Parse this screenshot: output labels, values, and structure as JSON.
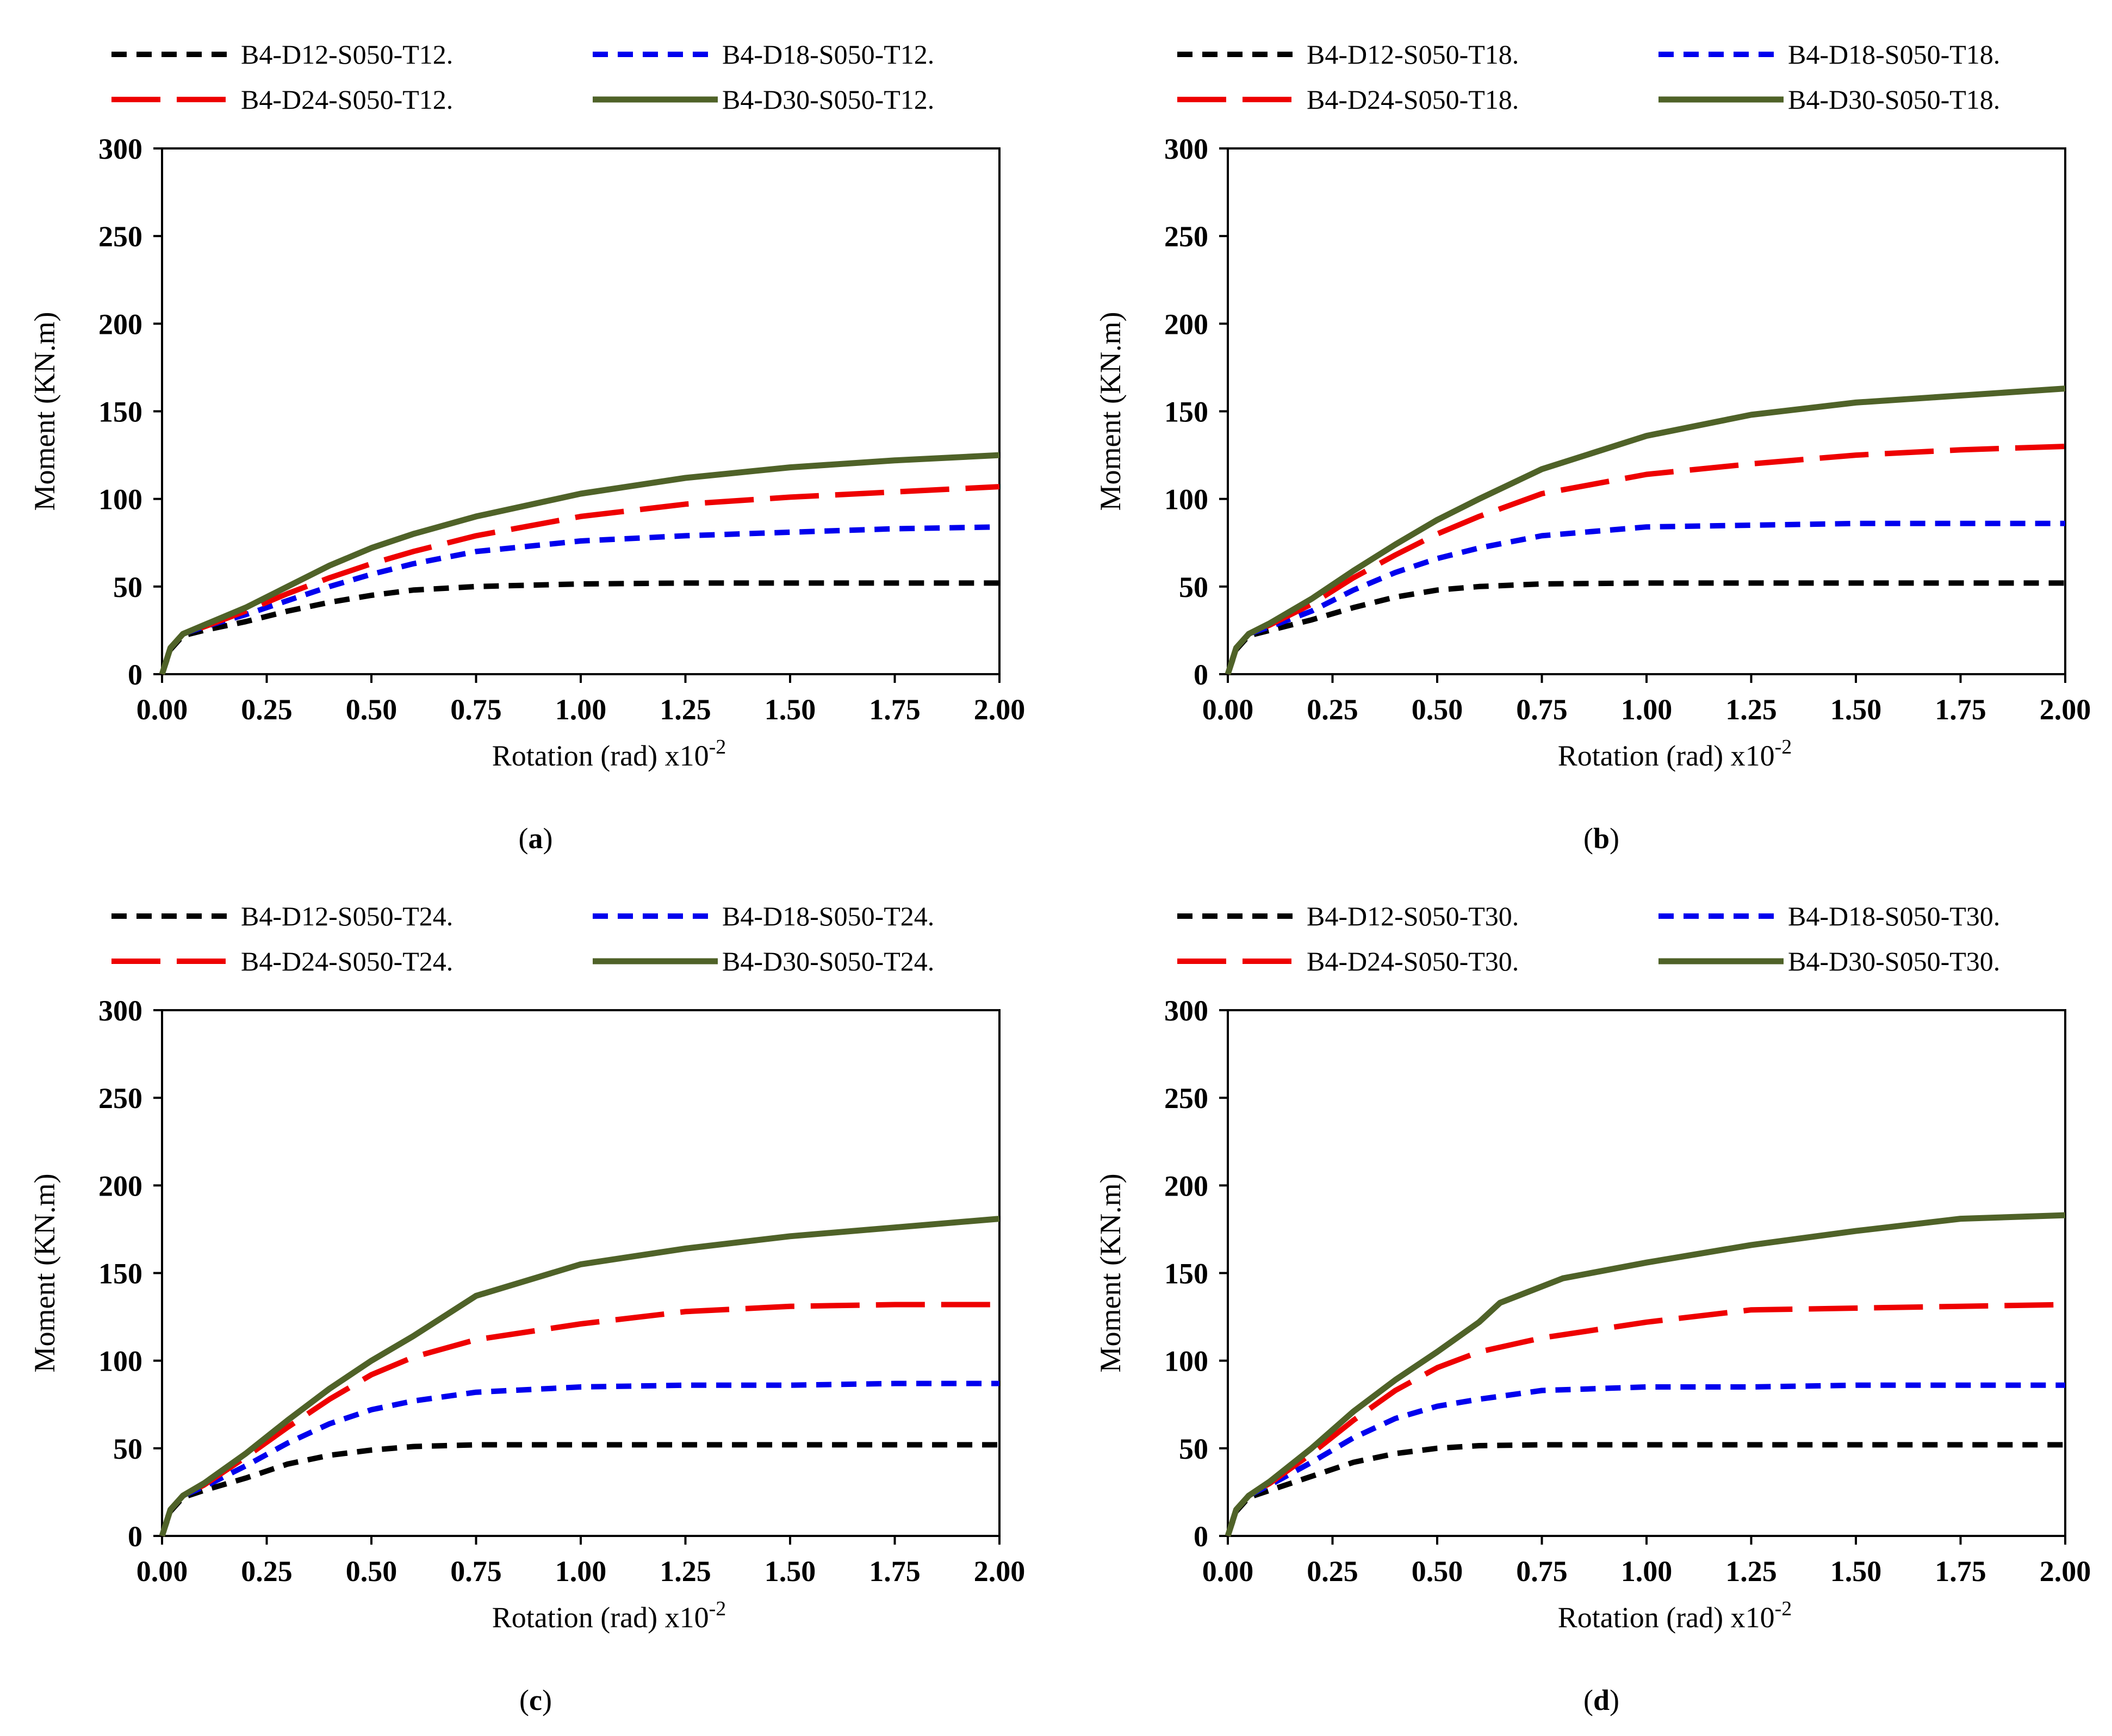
{
  "figure": {
    "panels": [
      {
        "caption_letter": "a",
        "series_labels": [
          "B4-D12-S050-T12.",
          "B4-D18-S050-T12.",
          "B4-D24-S050-T12.",
          "B4-D30-S050-T12."
        ]
      },
      {
        "caption_letter": "b",
        "series_labels": [
          "B4-D12-S050-T18.",
          "B4-D18-S050-T18.",
          "B4-D24-S050-T18.",
          "B4-D30-S050-T18."
        ]
      },
      {
        "caption_letter": "c",
        "series_labels": [
          "B4-D12-S050-T24.",
          "B4-D18-S050-T24.",
          "B4-D24-S050-T24.",
          "B4-D30-S050-T24."
        ]
      },
      {
        "caption_letter": "d",
        "series_labels": [
          "B4-D12-S050-T30.",
          "B4-D18-S050-T30.",
          "B4-D24-S050-T30.",
          "B4-D30-S050-T30."
        ]
      }
    ]
  },
  "chart_data": [
    {
      "type": "line",
      "panel": "a",
      "xlabel": "Rotation (rad)",
      "xscale_label": "x10",
      "xscale_exponent": "-2",
      "ylabel": "Moment (KN.m)",
      "xlim": [
        0,
        2
      ],
      "ylim": [
        0,
        300
      ],
      "xticks": [
        "0.00",
        "0.25",
        "0.50",
        "0.75",
        "1.00",
        "1.25",
        "1.50",
        "1.75",
        "2.00"
      ],
      "yticks": [
        "0",
        "50",
        "100",
        "150",
        "200",
        "250",
        "300"
      ],
      "legend_position": "top",
      "series": [
        {
          "name": "B4-D12-S050-T12.",
          "color": "#000000",
          "style": "dash",
          "x": [
            0,
            0.02,
            0.05,
            0.1,
            0.2,
            0.3,
            0.4,
            0.5,
            0.6,
            0.75,
            1.0,
            1.25,
            1.5,
            1.75,
            2.0
          ],
          "y": [
            0,
            14,
            22,
            25,
            30,
            36,
            41,
            45,
            48,
            50,
            51.5,
            52,
            52,
            52,
            52
          ]
        },
        {
          "name": "B4-D18-S050-T12.",
          "color": "#0000ee",
          "style": "dash",
          "x": [
            0,
            0.02,
            0.05,
            0.1,
            0.2,
            0.3,
            0.4,
            0.5,
            0.6,
            0.75,
            1.0,
            1.25,
            1.5,
            1.75,
            2.0
          ],
          "y": [
            0,
            15,
            23,
            27,
            34,
            42,
            50,
            57,
            63,
            70,
            76,
            79,
            81,
            83,
            84
          ]
        },
        {
          "name": "B4-D24-S050-T12.",
          "color": "#ee0000",
          "style": "longdash",
          "x": [
            0,
            0.02,
            0.05,
            0.1,
            0.2,
            0.3,
            0.4,
            0.5,
            0.6,
            0.75,
            1.0,
            1.25,
            1.5,
            1.75,
            2.0
          ],
          "y": [
            0,
            15,
            23,
            27,
            36,
            46,
            55,
            63,
            70,
            79,
            90,
            97,
            101,
            104,
            107
          ]
        },
        {
          "name": "B4-D30-S050-T12.",
          "color": "#4f6228",
          "style": "solid",
          "x": [
            0,
            0.02,
            0.05,
            0.1,
            0.2,
            0.3,
            0.4,
            0.5,
            0.6,
            0.75,
            1.0,
            1.25,
            1.5,
            1.75,
            2.0
          ],
          "y": [
            0,
            15,
            23,
            28,
            38,
            50,
            62,
            72,
            80,
            90,
            103,
            112,
            118,
            122,
            125
          ]
        }
      ]
    },
    {
      "type": "line",
      "panel": "b",
      "xlabel": "Rotation (rad)",
      "xscale_label": "x10",
      "xscale_exponent": "-2",
      "ylabel": "Moment (KN.m)",
      "xlim": [
        0,
        2
      ],
      "ylim": [
        0,
        300
      ],
      "xticks": [
        "0.00",
        "0.25",
        "0.50",
        "0.75",
        "1.00",
        "1.25",
        "1.50",
        "1.75",
        "2.00"
      ],
      "yticks": [
        "0",
        "50",
        "100",
        "150",
        "200",
        "250",
        "300"
      ],
      "legend_position": "top",
      "series": [
        {
          "name": "B4-D12-S050-T18.",
          "color": "#000000",
          "style": "dash",
          "x": [
            0,
            0.02,
            0.05,
            0.1,
            0.2,
            0.3,
            0.4,
            0.5,
            0.6,
            0.75,
            1.0,
            1.25,
            1.5,
            1.75,
            2.0
          ],
          "y": [
            0,
            14,
            22,
            25,
            31,
            38,
            44,
            48,
            50,
            51.5,
            52,
            52,
            52,
            52,
            52
          ]
        },
        {
          "name": "B4-D18-S050-T18.",
          "color": "#0000ee",
          "style": "dash",
          "x": [
            0,
            0.02,
            0.05,
            0.1,
            0.2,
            0.3,
            0.4,
            0.5,
            0.6,
            0.75,
            1.0,
            1.25,
            1.5,
            1.75,
            2.0
          ],
          "y": [
            0,
            15,
            23,
            27,
            36,
            48,
            58,
            66,
            72,
            79,
            84,
            85,
            86,
            86,
            86
          ]
        },
        {
          "name": "B4-D24-S050-T18.",
          "color": "#ee0000",
          "style": "longdash",
          "x": [
            0,
            0.02,
            0.05,
            0.1,
            0.2,
            0.3,
            0.4,
            0.5,
            0.6,
            0.75,
            1.0,
            1.25,
            1.5,
            1.75,
            2.0
          ],
          "y": [
            0,
            15,
            23,
            28,
            40,
            55,
            68,
            80,
            90,
            103,
            114,
            120,
            125,
            128,
            130
          ]
        },
        {
          "name": "B4-D30-S050-T18.",
          "color": "#4f6228",
          "style": "solid",
          "x": [
            0,
            0.02,
            0.05,
            0.1,
            0.2,
            0.3,
            0.4,
            0.5,
            0.6,
            0.75,
            1.0,
            1.25,
            1.5,
            1.75,
            2.0
          ],
          "y": [
            0,
            15,
            23,
            29,
            43,
            59,
            74,
            88,
            100,
            117,
            136,
            148,
            155,
            159,
            163
          ]
        }
      ]
    },
    {
      "type": "line",
      "panel": "c",
      "xlabel": "Rotation (rad)",
      "xscale_label": "x10",
      "xscale_exponent": "-2",
      "ylabel": "Moment (KN.m)",
      "xlim": [
        0,
        2
      ],
      "ylim": [
        0,
        300
      ],
      "xticks": [
        "0.00",
        "0.25",
        "0.50",
        "0.75",
        "1.00",
        "1.25",
        "1.50",
        "1.75",
        "2.00"
      ],
      "yticks": [
        "0",
        "50",
        "100",
        "150",
        "200",
        "250",
        "300"
      ],
      "legend_position": "top",
      "series": [
        {
          "name": "B4-D12-S050-T24.",
          "color": "#000000",
          "style": "dash",
          "x": [
            0,
            0.02,
            0.05,
            0.1,
            0.2,
            0.3,
            0.4,
            0.5,
            0.6,
            0.75,
            1.0,
            1.25,
            1.5,
            1.75,
            2.0
          ],
          "y": [
            0,
            14,
            22,
            26,
            33,
            41,
            46,
            49,
            51,
            52,
            52,
            52,
            52,
            52,
            52
          ]
        },
        {
          "name": "B4-D18-S050-T24.",
          "color": "#0000ee",
          "style": "dash",
          "x": [
            0,
            0.02,
            0.05,
            0.1,
            0.2,
            0.3,
            0.4,
            0.5,
            0.6,
            0.75,
            1.0,
            1.25,
            1.5,
            1.75,
            2.0
          ],
          "y": [
            0,
            15,
            23,
            28,
            40,
            53,
            64,
            72,
            77,
            82,
            85,
            86,
            86,
            87,
            87
          ]
        },
        {
          "name": "B4-D24-S050-T24.",
          "color": "#ee0000",
          "style": "longdash",
          "x": [
            0,
            0.02,
            0.05,
            0.1,
            0.2,
            0.3,
            0.4,
            0.5,
            0.6,
            0.75,
            1.0,
            1.25,
            1.5,
            1.75,
            2.0
          ],
          "y": [
            0,
            15,
            23,
            29,
            45,
            62,
            78,
            92,
            102,
            112,
            121,
            128,
            131,
            132,
            132
          ]
        },
        {
          "name": "B4-D30-S050-T24.",
          "color": "#4f6228",
          "style": "solid",
          "x": [
            0,
            0.02,
            0.05,
            0.1,
            0.2,
            0.3,
            0.4,
            0.5,
            0.6,
            0.75,
            1.0,
            1.25,
            1.5,
            1.75,
            2.0
          ],
          "y": [
            0,
            15,
            23,
            30,
            47,
            66,
            84,
            100,
            114,
            137,
            155,
            164,
            171,
            176,
            181
          ]
        }
      ]
    },
    {
      "type": "line",
      "panel": "d",
      "xlabel": "Rotation (rad)",
      "xscale_label": "x10",
      "xscale_exponent": "-2",
      "ylabel": "Moment (KN.m)",
      "xlim": [
        0,
        2
      ],
      "ylim": [
        0,
        300
      ],
      "xticks": [
        "0.00",
        "0.25",
        "0.50",
        "0.75",
        "1.00",
        "1.25",
        "1.50",
        "1.75",
        "2.00"
      ],
      "yticks": [
        "0",
        "50",
        "100",
        "150",
        "200",
        "250",
        "300"
      ],
      "legend_position": "top",
      "series": [
        {
          "name": "B4-D12-S050-T30.",
          "color": "#000000",
          "style": "dash",
          "x": [
            0,
            0.02,
            0.05,
            0.1,
            0.2,
            0.3,
            0.4,
            0.5,
            0.6,
            0.75,
            1.0,
            1.25,
            1.5,
            1.75,
            2.0
          ],
          "y": [
            0,
            14,
            22,
            26,
            34,
            42,
            47,
            50,
            51.5,
            52,
            52,
            52,
            52,
            52,
            52
          ]
        },
        {
          "name": "B4-D18-S050-T30.",
          "color": "#0000ee",
          "style": "dash",
          "x": [
            0,
            0.02,
            0.05,
            0.1,
            0.2,
            0.3,
            0.4,
            0.5,
            0.6,
            0.75,
            1.0,
            1.25,
            1.5,
            1.75,
            2.0
          ],
          "y": [
            0,
            15,
            23,
            29,
            42,
            56,
            67,
            74,
            78,
            83,
            85,
            85,
            86,
            86,
            86
          ]
        },
        {
          "name": "B4-D24-S050-T30.",
          "color": "#ee0000",
          "style": "longdash",
          "x": [
            0,
            0.02,
            0.05,
            0.1,
            0.2,
            0.3,
            0.4,
            0.5,
            0.6,
            0.75,
            1.0,
            1.25,
            1.5,
            1.75,
            2.0
          ],
          "y": [
            0,
            15,
            23,
            30,
            47,
            66,
            83,
            96,
            105,
            113,
            122,
            129,
            130,
            131,
            132
          ]
        },
        {
          "name": "B4-D30-S050-T30.",
          "color": "#4f6228",
          "style": "solid",
          "x": [
            0,
            0.02,
            0.05,
            0.1,
            0.2,
            0.3,
            0.4,
            0.5,
            0.6,
            0.65,
            0.8,
            1.0,
            1.25,
            1.5,
            1.75,
            2.0
          ],
          "y": [
            0,
            15,
            23,
            31,
            50,
            71,
            89,
            105,
            122,
            133,
            147,
            156,
            166,
            174,
            181,
            183
          ]
        }
      ]
    }
  ]
}
